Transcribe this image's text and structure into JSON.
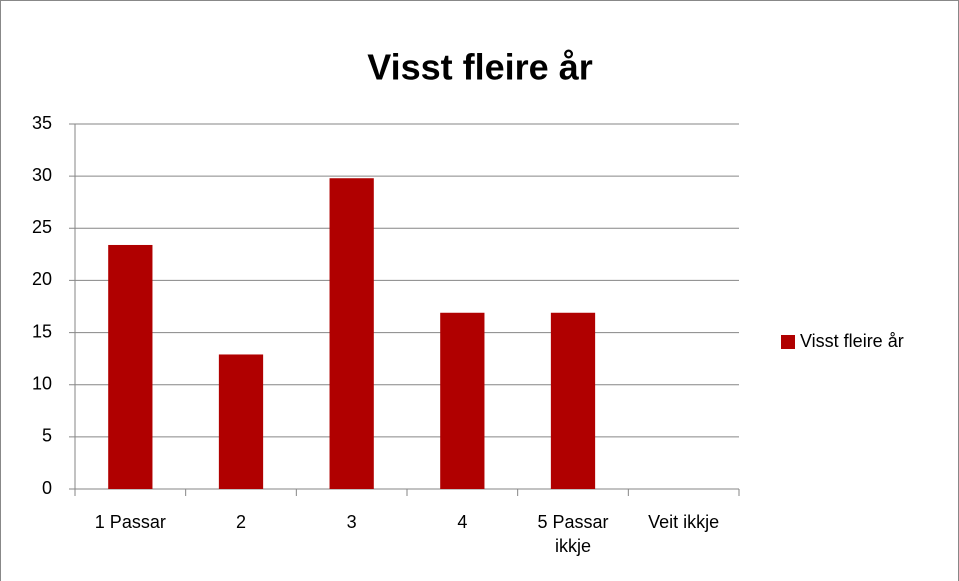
{
  "chart_data": {
    "type": "bar",
    "title": "Visst fleire år",
    "categories": [
      "1 Passar",
      "2",
      "3",
      "4",
      "5 Passar ikkje",
      "Veit ikkje"
    ],
    "series": [
      {
        "name": "Visst fleire år",
        "color": "#b00000",
        "values": [
          23.4,
          12.9,
          29.8,
          16.9,
          16.9,
          0
        ]
      }
    ],
    "ylim": [
      0,
      35
    ],
    "yticks": [
      0,
      5,
      10,
      15,
      20,
      25,
      30,
      35
    ],
    "grid": true,
    "legend": "right"
  }
}
